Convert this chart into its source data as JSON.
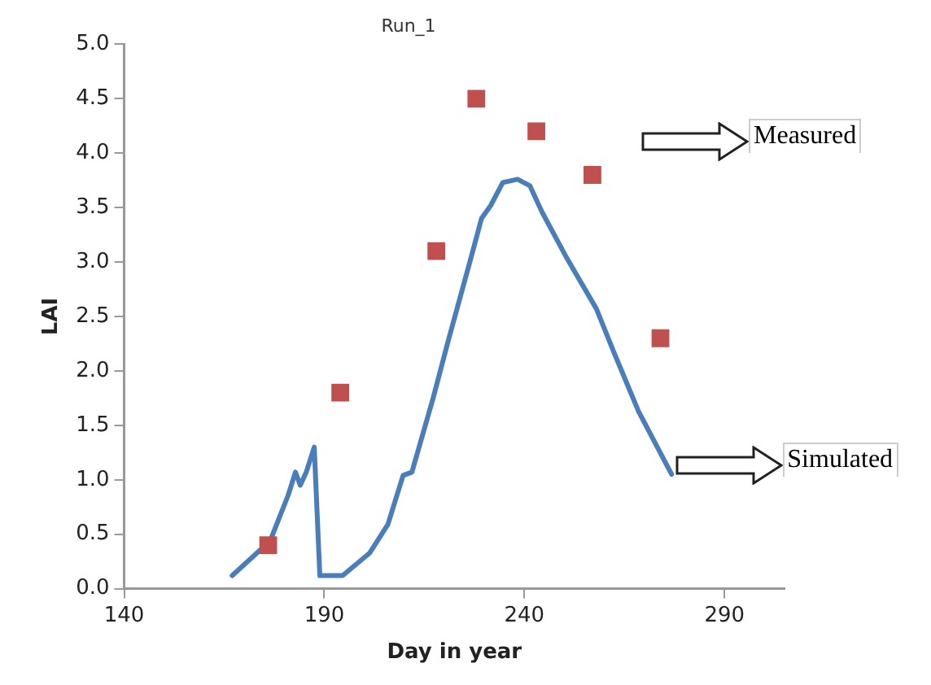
{
  "chart_data": {
    "type": "scatter",
    "title": "Run_1",
    "xlabel": "Day in year",
    "ylabel": "LAI",
    "xlim": [
      140,
      305
    ],
    "xticks": [
      140,
      190,
      240,
      290
    ],
    "ylim": [
      0,
      5
    ],
    "yticks": [
      {
        "value": 0,
        "label": "0.0"
      },
      {
        "value": 0.5,
        "label": "0.5"
      },
      {
        "value": 1,
        "label": "1.0"
      },
      {
        "value": 1.5,
        "label": "1.5"
      },
      {
        "value": 2,
        "label": "2.0"
      },
      {
        "value": 2.5,
        "label": "2.5"
      },
      {
        "value": 3,
        "label": "3.0"
      },
      {
        "value": 3.5,
        "label": "3.5"
      },
      {
        "value": 4,
        "label": "4.0"
      },
      {
        "value": 4.5,
        "label": "4.5"
      },
      {
        "value": 5,
        "label": "5.0"
      }
    ],
    "grid": false,
    "legend": false,
    "series": [
      {
        "name": "Measured",
        "marker": "square",
        "color": "#c0504d",
        "x": [
          176,
          194,
          218,
          228,
          243,
          257,
          274
        ],
        "values": [
          0.4,
          1.8,
          3.1,
          4.5,
          4.2,
          3.8,
          2.3
        ]
      },
      {
        "name": "Simulated",
        "type": "line",
        "marker": "none",
        "line_style": "solid",
        "color": "#4a7ebb",
        "x": [
          167,
          176.5,
          181,
          182.8,
          184,
          185.5,
          187.5,
          188.9,
          194.6,
          201.4,
          205.9,
          209.7,
          211.9,
          217.2,
          221,
          226.3,
          229.3,
          231.6,
          234.6,
          238.3,
          241.4,
          244.4,
          250.4,
          258,
          262.5,
          268.5,
          276.8
        ],
        "values": [
          0.12,
          0.44,
          0.86,
          1.07,
          0.95,
          1.07,
          1.3,
          0.12,
          0.12,
          0.33,
          0.59,
          1.04,
          1.07,
          1.75,
          2.28,
          2.99,
          3.4,
          3.52,
          3.73,
          3.76,
          3.7,
          3.46,
          3.05,
          2.57,
          2.16,
          1.63,
          1.05
        ]
      }
    ]
  }
}
